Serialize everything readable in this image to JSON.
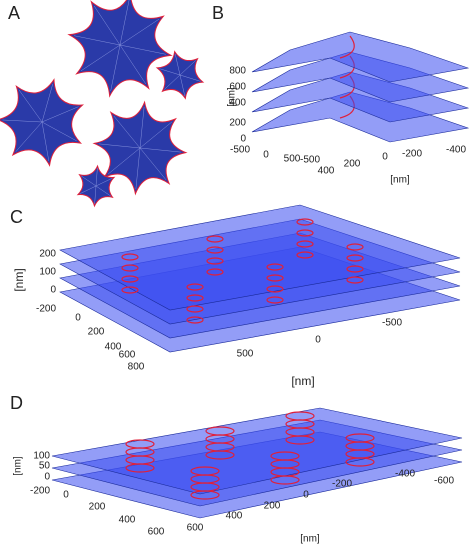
{
  "panels": [
    {
      "label": "A"
    },
    {
      "label": "B",
      "z_ticks": [
        800,
        600,
        400,
        200,
        0
      ],
      "z_axis": "[nm]",
      "x_ticks": [
        -500,
        0,
        500
      ],
      "y_ticks": [
        -500,
        400,
        200,
        0,
        -200,
        -400
      ],
      "axis_label": "[nm]"
    },
    {
      "label": "C",
      "z_ticks": [
        200,
        100,
        0,
        -200
      ],
      "z_axis": "[nm]",
      "x_ticks": [
        0,
        200,
        400,
        600,
        800
      ],
      "y_ticks": [
        500,
        0,
        -500
      ],
      "axis_label": "[nm]"
    },
    {
      "label": "D",
      "z_ticks": [
        100,
        50,
        0,
        -200
      ],
      "z_axis": "[nm]",
      "x_ticks": [
        0,
        200,
        400,
        600
      ],
      "y_ticks": [
        600,
        400,
        200,
        0,
        -200,
        -400,
        -600
      ],
      "axis_label": "[nm]"
    }
  ]
}
